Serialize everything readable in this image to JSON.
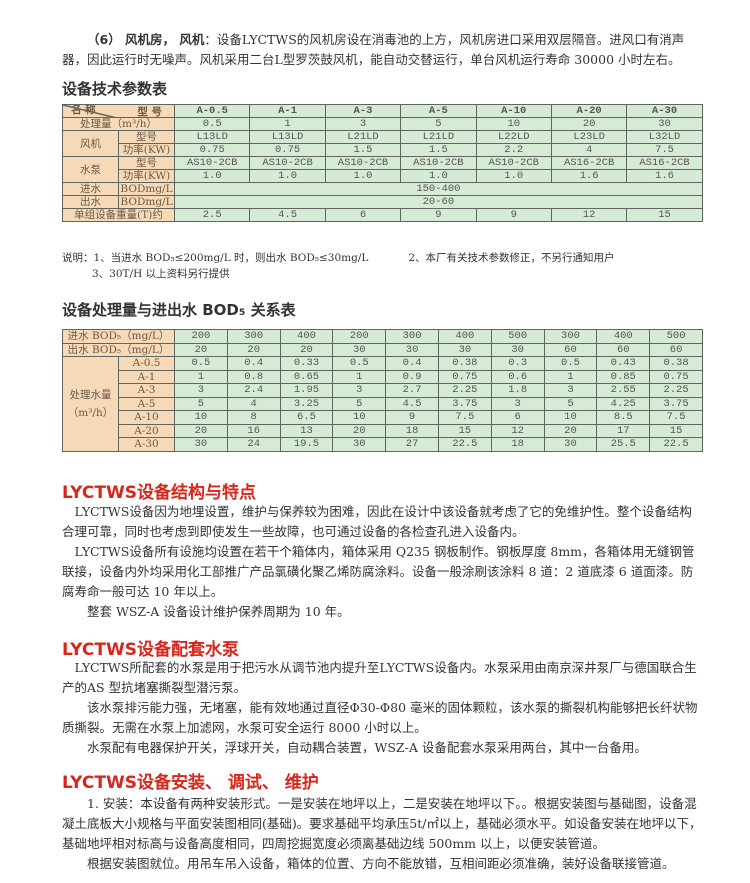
{
  "intro": {
    "lead": "（6） 风机房， 风机",
    "text": "：设备LYCTWS的风机房设在消毒池的上方，风机房进口采用双层隔音。进风口有消声器，因此运行时无噪声。风机采用二台L型罗茨鼓风机，能自动交替运行，单台风机运行寿命 30000 小时左右。"
  },
  "spec_table": {
    "title": "设备技术参数表",
    "corner_model": "型 号",
    "corner_name": "名 称",
    "models": [
      "A-0.5",
      "A-1",
      "A-3",
      "A-5",
      "A-10",
      "A-20",
      "A-30"
    ],
    "rows": [
      {
        "label": "处理量（m³/h）",
        "values": [
          "0.5",
          "1",
          "3",
          "5",
          "10",
          "20",
          "30"
        ]
      },
      {
        "group": "风机",
        "sub": "型号",
        "values": [
          "L13LD",
          "L13LD",
          "L21LD",
          "L21LD",
          "L22LD",
          "L23LD",
          "L32LD"
        ]
      },
      {
        "sub": "功率(KW)",
        "values": [
          "0.75",
          "0.75",
          "1.5",
          "1.5",
          "2.2",
          "4",
          "7.5"
        ]
      },
      {
        "group": "水泵",
        "sub": "型号",
        "values": [
          "AS10-2CB",
          "AS10-2CB",
          "AS10-2CB",
          "AS10-2CB",
          "AS10-2CB",
          "AS16-2CB",
          "AS16-2CB"
        ]
      },
      {
        "sub": "功率(KW)",
        "values": [
          "1.0",
          "1.0",
          "1.0",
          "1.0",
          "1.0",
          "1.6",
          "1.6"
        ]
      },
      {
        "group": "进水",
        "sub": "BODmg/L",
        "merged": "150-400"
      },
      {
        "group": "出水",
        "sub": "BODmg/L",
        "merged": "20-60"
      },
      {
        "label": "单组设备重量(T)约",
        "values": [
          "2.5",
          "4.5",
          "6",
          "9",
          "9",
          "12",
          "15"
        ]
      }
    ],
    "notes": [
      "说明：1、当进水 BOD₅≤200mg/L 时，则出水 BOD₅≤30mg/L",
      "2、本厂有关技术参数修正，不另行通知用户",
      "3、30T/H 以上资料另行提供"
    ]
  },
  "bod_table": {
    "title": "设备处理量与进出水 BOD₅ 关系表",
    "in_label": "进水 BOD₅（mg/L）",
    "in_values": [
      "200",
      "300",
      "400",
      "200",
      "300",
      "400",
      "500",
      "300",
      "400",
      "500"
    ],
    "out_label": "出水 BOD₅（mg/L）",
    "out_values": [
      "20",
      "20",
      "20",
      "30",
      "30",
      "30",
      "30",
      "60",
      "60",
      "60"
    ],
    "group_label": "处理水量",
    "group_unit": "（m³/h）",
    "rows": [
      {
        "model": "A-0.5",
        "values": [
          "0.5",
          "0.4",
          "0.33",
          "0.5",
          "0.4",
          "0.38",
          "0.3",
          "0.5",
          "0.43",
          "0.38"
        ]
      },
      {
        "model": "A-1",
        "values": [
          "1",
          "0.8",
          "0.65",
          "1",
          "0.9",
          "0.75",
          "0.6",
          "1",
          "0.85",
          "0.75"
        ]
      },
      {
        "model": "A-3",
        "values": [
          "3",
          "2.4",
          "1.95",
          "3",
          "2.7",
          "2.25",
          "1.8",
          "3",
          "2.55",
          "2.25"
        ]
      },
      {
        "model": "A-5",
        "values": [
          "5",
          "4",
          "3.25",
          "5",
          "4.5",
          "3.75",
          "3",
          "5",
          "4.25",
          "3.75"
        ]
      },
      {
        "model": "A-10",
        "values": [
          "10",
          "8",
          "6.5",
          "10",
          "9",
          "7.5",
          "6",
          "10",
          "8.5",
          "7.5"
        ]
      },
      {
        "model": "A-20",
        "values": [
          "20",
          "16",
          "13",
          "20",
          "18",
          "15",
          "12",
          "20",
          "17",
          "15"
        ]
      },
      {
        "model": "A-30",
        "values": [
          "30",
          "24",
          "19.5",
          "30",
          "27",
          "22.5",
          "18",
          "30",
          "25.5",
          "22.5"
        ]
      }
    ]
  },
  "structure": {
    "heading": "LYCTWS设备结构与特点",
    "p1": "LYCTWS设备因为地埋设置，维护与保养较为困难，因此在设计中该设备就考虑了它的免维护性。整个设备结构合理可靠，同时也考虑到即使发生一些故障，也可通过设备的各检查孔进入设备内。",
    "p2": "LYCTWS设备所有设施均设置在若干个箱体内，箱体采用 Q235 钢板制作。钢板厚度 8mm，各箱体用无缝钢管联接，设备内外均采用化工部推广产品氯磺化聚乙烯防腐涂料。设备一般涂刷该涂料 8 道：2 道底漆 6 道面漆。防腐寿命一般可达 10 年以上。",
    "p3": "整套 WSZ-A 设备设计维护保养周期为 10 年。"
  },
  "pump": {
    "heading": "LYCTWS设备配套水泵",
    "p1": "LYCTWS所配套的水泵是用于把污水从调节池内提升至LYCTWS设备内。水泵采用由南京深井泵厂与德国联合生产的AS 型抗堵塞撕裂型潜污泵。",
    "p2": "该水泵排污能力强，无堵塞，能有效地通过直径Φ30-Φ80 毫米的固体颗粒，该水泵的撕裂机构能够把长纤状物质撕裂。无需在水泵上加滤网，水泵可安全运行 8000 小时以上。",
    "p3": "水泵配有电器保护开关，浮球开关，自动耦合装置，WSZ-A 设备配套水泵采用两台，其中一台备用。"
  },
  "install": {
    "heading": "LYCTWS设备安装、 调试、 维护",
    "p1": "1. 安装：本设备有两种安装形式。一是安装在地坪以上，二是安装在地坪以下。。根据安装图与基础图，设备混凝土底板大小规格与平面安装图相同(基础)。要求基础平均承压5t/㎡以上，基础必须水平。如设备安装在地坪以下，基础地坪相对标高与设备高度相同，四周挖掘宽度必须离基础边线 500mm 以上，以便安装管道。",
    "p2": "根据安装图就位。用吊车吊入设备，箱体的位置、方向不能放错，互相间距必须准确，装好设备联接管道。"
  },
  "colors": {
    "heading_red": "#d9251c",
    "label_bg": "#f6d9b6",
    "value_bg": "#d5ebd6"
  }
}
